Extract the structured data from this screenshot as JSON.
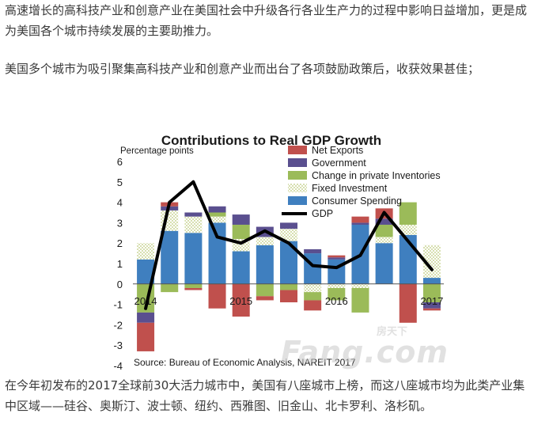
{
  "article": {
    "paragraph_1": "高速增长的高科技产业和创意产业在美国社会中升级各行各业生产力的过程中影响日益增加，更是成为美国各个城市持续发展的主要助推力。",
    "paragraph_2": "美国多个城市为吸引聚集高科技产业和创意产业而出台了各项鼓励政策后，收获效果甚佳；",
    "paragraph_3": "在今年初发布的2017全球前30大活力城市中，美国有八座城市上榜，而这八座城市均为此类产业集中区域——硅谷、奥斯汀、波士顿、纽约、西雅图、旧金山、北卡罗利、洛杉矶。"
  },
  "watermark": {
    "small": "房天下",
    "big": "Fang.com"
  },
  "colors": {
    "net_exports": "#c0504d",
    "government": "#5a4f8f",
    "private_inventories": "#9bbb59",
    "fixed_investment": "#d7dfb0",
    "consumer_spending": "#3f7fbf",
    "gdp": "#000000"
  },
  "chart_data": {
    "type": "bar",
    "title": "Contributions to Real GDP Growth",
    "ylabel": "Percentage points",
    "ylim": [
      -4,
      6
    ],
    "yticks": [
      6,
      5,
      4,
      3,
      2,
      1,
      0,
      -1,
      -2,
      -3,
      -4
    ],
    "x_tick_labels": [
      {
        "index": 0,
        "label": "2014"
      },
      {
        "index": 4,
        "label": "2015"
      },
      {
        "index": 8,
        "label": "2016"
      },
      {
        "index": 12,
        "label": "2017"
      }
    ],
    "legend_position": "top-right",
    "source": "Source:  Bureau of Economic Analysis, NAREIT 2017",
    "series": [
      {
        "name": "Net Exports",
        "key": "net_exports",
        "values": [
          -1.4,
          0.2,
          -0.1,
          -1.2,
          -1.6,
          -0.2,
          -0.6,
          -0.5,
          0.1,
          0.3,
          0.5,
          -1.9,
          -0.1
        ]
      },
      {
        "name": "Government",
        "key": "government",
        "values": [
          -0.5,
          0.2,
          0.2,
          0.3,
          0.5,
          0.5,
          0.3,
          0.2,
          0.1,
          0.1,
          0.3,
          0.0,
          -0.3
        ]
      },
      {
        "name": "Change in private Inventories",
        "key": "private_inventories",
        "values": [
          -1.4,
          -0.4,
          -0.2,
          0.2,
          0.7,
          -0.6,
          -0.3,
          -0.4,
          -0.6,
          -1.2,
          0.6,
          1.1,
          -0.9
        ]
      },
      {
        "name": "Fixed Investment",
        "key": "fixed_investment",
        "values": [
          0.8,
          1.0,
          0.8,
          0.3,
          0.6,
          0.4,
          0.6,
          -0.4,
          -0.2,
          -0.2,
          0.3,
          0.5,
          1.6
        ]
      },
      {
        "name": "Consumer Spending",
        "key": "consumer_spending",
        "values": [
          1.2,
          2.6,
          2.5,
          3.0,
          1.6,
          1.9,
          2.1,
          1.5,
          1.2,
          2.9,
          2.0,
          2.4,
          0.3
        ]
      }
    ],
    "gdp": {
      "name": "GDP",
      "key": "gdp",
      "values": [
        -1.2,
        4.0,
        5.0,
        2.3,
        2.0,
        2.6,
        2.0,
        0.9,
        0.8,
        1.4,
        3.5,
        2.1,
        0.7
      ]
    }
  }
}
